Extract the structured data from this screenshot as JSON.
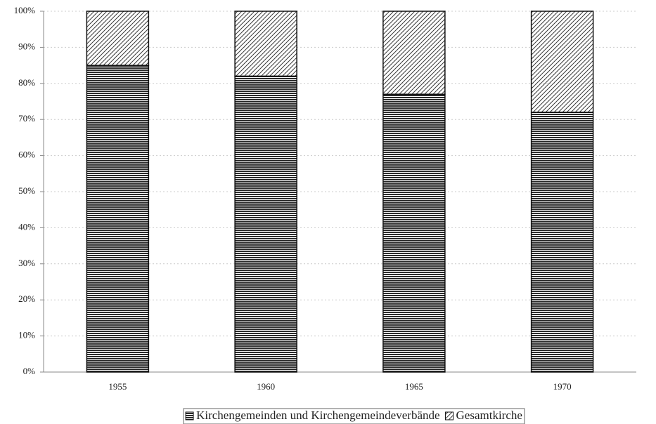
{
  "chart_data": {
    "type": "stacked_bar",
    "categories": [
      "1955",
      "1960",
      "1965",
      "1970"
    ],
    "series": [
      {
        "name": "Kirchengemeinden und Kirchengemeindeverbände",
        "color": "#2b2b2b",
        "pattern": "horizontal",
        "values": [
          85,
          82,
          77,
          72
        ]
      },
      {
        "name": "Gesamtkirche",
        "color": "#3a3a3a",
        "pattern": "diagonal",
        "values": [
          15,
          18,
          23,
          28
        ]
      }
    ],
    "ylim": [
      0,
      100
    ],
    "yticks": [
      {
        "value": 0,
        "label": "0%"
      },
      {
        "value": 10,
        "label": "10%"
      },
      {
        "value": 20,
        "label": "20%"
      },
      {
        "value": 30,
        "label": "30%"
      },
      {
        "value": 40,
        "label": "40%"
      },
      {
        "value": 50,
        "label": "50%"
      },
      {
        "value": 60,
        "label": "60%"
      },
      {
        "value": 70,
        "label": "70%"
      },
      {
        "value": 80,
        "label": "80%"
      },
      {
        "value": 90,
        "label": "90%"
      },
      {
        "value": 100,
        "label": "100%"
      }
    ],
    "grid": true,
    "legend": "bottom"
  }
}
